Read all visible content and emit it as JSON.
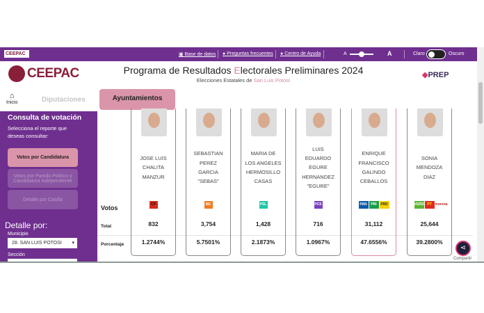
{
  "topbar": {
    "logo": "CEEPAC",
    "links": [
      "Base de datos",
      "Preguntas frecuentes",
      "Centro de Ayuda"
    ],
    "font_small": "A",
    "font_large": "A",
    "font_size_level": 0.45,
    "theme_light": "Claro",
    "theme_dark": "Oscuro"
  },
  "header": {
    "logo": "CEEPAC",
    "title_pre": "Programa de Resultados ",
    "title_e": "E",
    "title_post": "lectorales Preliminares 2024",
    "subtitle_pre": "Elecciones Estatales de ",
    "subtitle_state": "San Luis Potosí",
    "prep_logo": "PREP"
  },
  "tabs": {
    "home": "Inicio",
    "diputaciones": "Diputaciones",
    "ayuntamientos": "Ayuntamientos"
  },
  "sidebar": {
    "title": "Consulta de votación",
    "hint": "Selecciona el reporte que deseas consultar:",
    "options": [
      "Votos por Candidatura",
      "Votos por Partido Político y Candidatura Independiente",
      "Detalle por Casilla"
    ],
    "detail_title": "Detalle por:",
    "municipio_label": "Municipio",
    "municipio_value": "28. SAN LUIS POTOSI",
    "seccion_label": "Sección"
  },
  "table": {
    "row_votos": "Votos",
    "row_total": "Total",
    "row_pct": "Porcentaje",
    "candidates": [
      {
        "name": "JOSE LUIS\nCHALITA\nMANZUR",
        "parties": [
          "CP"
        ],
        "total": "832",
        "pct": "1.2744%"
      },
      {
        "name": "SEBASTIAN\nPEREZ\nGARCIA\n\"SEBAS\"",
        "parties": [
          "MC"
        ],
        "total": "3,754",
        "pct": "5.7501%"
      },
      {
        "name": "MARIA DE\nLOS ANGELES\nHERMOSILLO\nCASAS",
        "parties": [
          "PSL"
        ],
        "total": "1,428",
        "pct": "2.1873%"
      },
      {
        "name": "LUIS\nEDUARDO\nEGURE\nHERNANDEZ\n\"EGURE\"",
        "parties": [
          "PCS"
        ],
        "total": "716",
        "pct": "1.0967%"
      },
      {
        "name": "ENRIQUE\nFRANCISCO\nGALINDO\nCEBALLOS",
        "parties": [
          "PAN",
          "PRI",
          "PRD"
        ],
        "total": "31,112",
        "pct": "47.6556%"
      },
      {
        "name": "SONIA\nMENDOZA\nDIAZ",
        "parties": [
          "VERDE",
          "PT",
          "morena"
        ],
        "total": "25,644",
        "pct": "39.2800%"
      }
    ]
  },
  "share": "Compartir",
  "colors": {
    "purple": "#6f2f8f",
    "pink": "#db95aa",
    "brand": "#8a1f3a"
  }
}
